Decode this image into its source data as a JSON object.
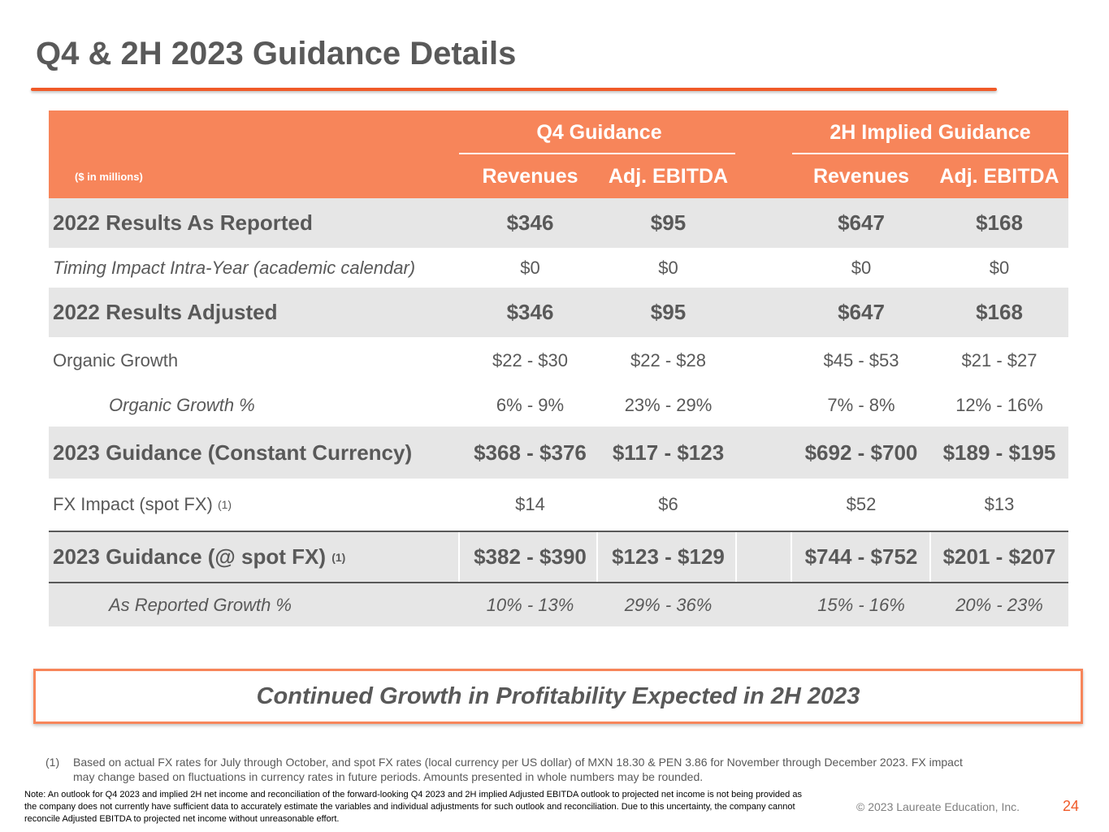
{
  "title": "Q4 & 2H 2023 Guidance Details",
  "table": {
    "units_note": "($ in millions)",
    "groups": [
      "Q4 Guidance",
      "2H Implied Guidance"
    ],
    "columns": [
      "Revenues",
      "Adj. EBITDA",
      "Revenues",
      "Adj. EBITDA"
    ],
    "rows": [
      {
        "label": "2022 Results As Reported",
        "values": [
          "$346",
          "$95",
          "$647",
          "$168"
        ]
      },
      {
        "label": "Timing Impact Intra-Year (academic calendar)",
        "values": [
          "$0",
          "$0",
          "$0",
          "$0"
        ]
      },
      {
        "label": "2022 Results Adjusted",
        "values": [
          "$346",
          "$95",
          "$647",
          "$168"
        ]
      },
      {
        "label": "Organic Growth",
        "values": [
          "$22 - $30",
          "$22 - $28",
          "$45 - $53",
          "$21 - $27"
        ]
      },
      {
        "label": "Organic Growth %",
        "values": [
          "6% - 9%",
          "23% - 29%",
          "7% - 8%",
          "12% - 16%"
        ]
      },
      {
        "label": "2023 Guidance (Constant Currency)",
        "values": [
          "$368 - $376",
          "$117 - $123",
          "$692 - $700",
          "$189 - $195"
        ]
      },
      {
        "label": "FX Impact (spot FX)",
        "footnote": "(1)",
        "values": [
          "$14",
          "$6",
          "$52",
          "$13"
        ]
      },
      {
        "label": "2023 Guidance (@ spot FX)",
        "footnote": "(1)",
        "values": [
          "$382 - $390",
          "$123 - $129",
          "$744 - $752",
          "$201 - $207"
        ]
      },
      {
        "label": "As Reported Growth %",
        "values": [
          "10% - 13%",
          "29% - 36%",
          "15% - 16%",
          "20% - 23%"
        ]
      }
    ]
  },
  "banner": "Continued Growth in Profitability Expected in 2H 2023",
  "footnote": {
    "marker": "(1)",
    "text": "Based on actual FX rates for July through October, and spot FX rates (local currency per US dollar) of MXN 18.30 & PEN 3.86 for November through December 2023. FX impact may change based on fluctuations in currency rates in future periods. Amounts presented in whole numbers may be rounded."
  },
  "note": "Note: An outlook for Q4 2023 and implied 2H net income and reconciliation of the forward-looking Q4 2023 and 2H implied Adjusted EBITDA outlook to projected net income is not being provided as the company does not currently have sufficient data to accurately estimate the variables and individual adjustments for such outlook and reconciliation. Due to this uncertainty, the company cannot reconcile Adjusted EBITDA to projected net income without unreasonable effort.",
  "copyright": "© 2023 Laureate Education, Inc.",
  "page_number": "24",
  "colors": {
    "accent": "#f05a28",
    "header": "#f7855a",
    "row_shade": "#e6e6e6",
    "text": "#595959"
  }
}
